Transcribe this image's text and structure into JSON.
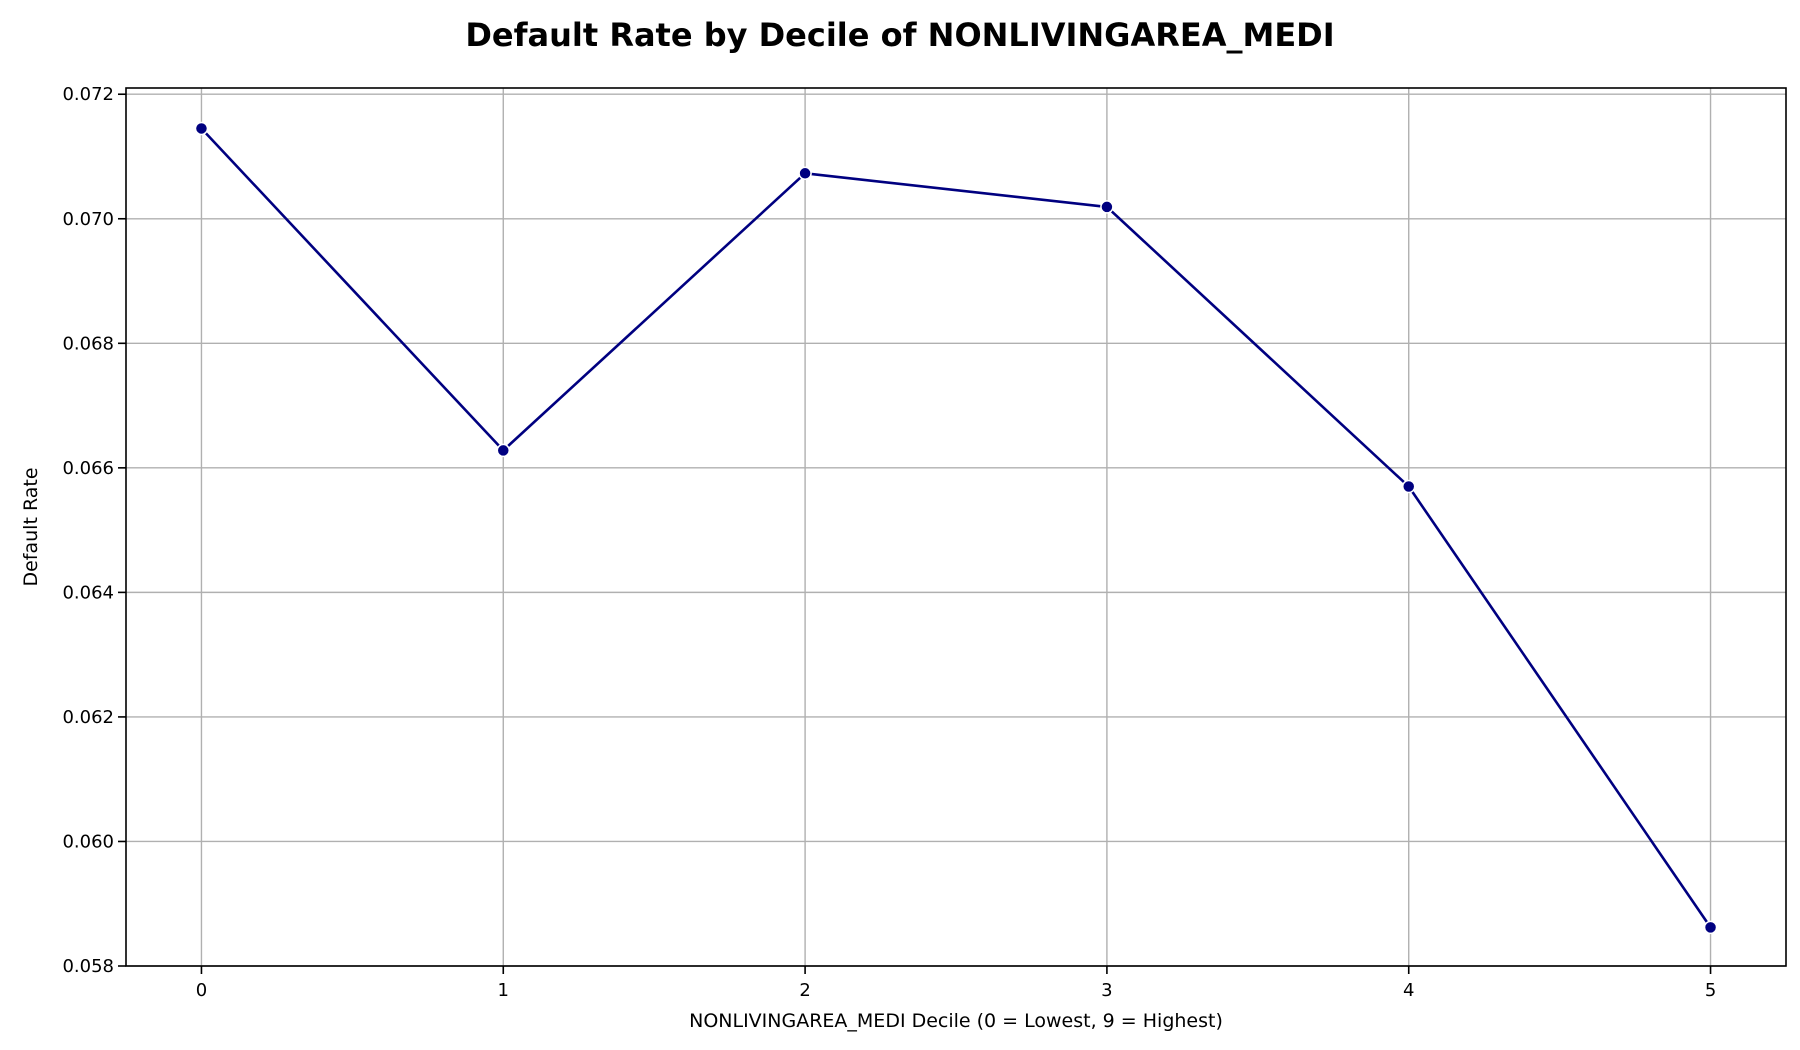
{
  "chart_data": {
    "type": "line",
    "title": "Default Rate by Decile of NONLIVINGAREA_MEDI",
    "xlabel": "NONLIVINGAREA_MEDI Decile (0 = Lowest, 9 = Highest)",
    "ylabel": "Default Rate",
    "x": [
      0,
      1,
      2,
      3,
      4,
      5
    ],
    "series": [
      {
        "values": [
          0.07145,
          0.06628,
          0.07073,
          0.07019,
          0.0657,
          0.05862
        ],
        "color": "#000080"
      }
    ],
    "xlim": [
      -0.25,
      5.25
    ],
    "ylim": [
      0.058,
      0.0721
    ],
    "xticks": [
      "0",
      "1",
      "2",
      "3",
      "4",
      "5"
    ],
    "yticks": [
      "0.058",
      "0.060",
      "0.062",
      "0.064",
      "0.066",
      "0.068",
      "0.070",
      "0.072"
    ],
    "grid": true
  }
}
